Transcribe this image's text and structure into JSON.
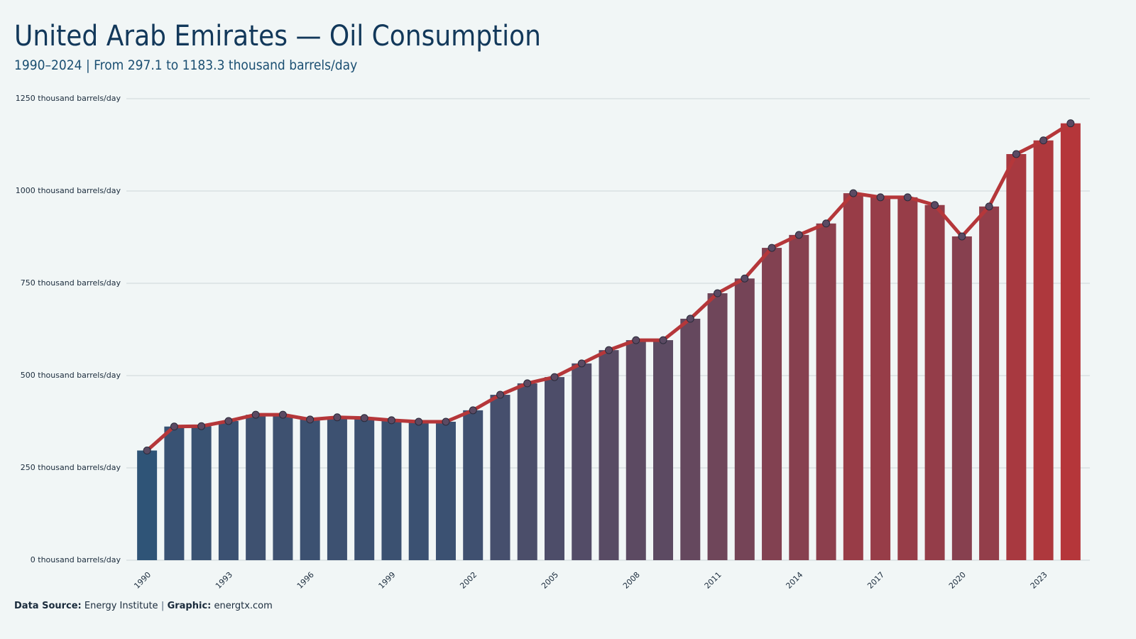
{
  "chart_data": {
    "type": "bar_line",
    "title": "United Arab Emirates — Oil Consumption",
    "subtitle": "1990–2024 | From 297.1 to 1183.3 thousand barrels/day",
    "categories": [
      "1990",
      null,
      null,
      "1993",
      null,
      null,
      "1996",
      null,
      null,
      "1999",
      null,
      null,
      "2002",
      null,
      null,
      "2005",
      null,
      null,
      "2008",
      null,
      null,
      "2011",
      null,
      null,
      "2014",
      null,
      null,
      "2017",
      null,
      null,
      "2020",
      null,
      null,
      "2023",
      null
    ],
    "values": [
      297.1,
      362,
      363,
      377,
      394,
      394,
      381,
      387,
      385,
      379,
      375,
      375,
      406,
      448,
      479,
      496,
      533,
      569,
      596,
      596,
      654,
      723,
      763,
      846,
      881,
      912,
      994,
      983,
      983,
      962,
      877,
      958,
      1100,
      1137,
      1183.3
    ],
    "bar_colors": [
      "#2f5477",
      "#b5363a"
    ],
    "line_color": "#b5373a",
    "marker_color": "#5b4a63",
    "ylim": [
      0,
      1250
    ],
    "yticks": [
      {
        "value": 0,
        "label": "0 thousand barrels/day"
      },
      {
        "value": 250,
        "label": "250 thousand barrels/day"
      },
      {
        "value": 500,
        "label": "500 thousand barrels/day"
      },
      {
        "value": 750,
        "label": "750 thousand barrels/day"
      },
      {
        "value": 1000,
        "label": "1000 thousand barrels/day"
      },
      {
        "value": 1250,
        "label": "1250 thousand barrels/day"
      }
    ],
    "grid": true,
    "source_label": "Data Source:",
    "source": "Energy Institute",
    "separator": "|",
    "graphic_label": "Graphic:",
    "graphic": "energtx.com"
  }
}
